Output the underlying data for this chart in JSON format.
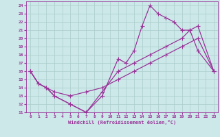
{
  "xlabel": "Windchill (Refroidissement éolien,°C)",
  "xlim": [
    -0.5,
    23.5
  ],
  "ylim": [
    11,
    24.5
  ],
  "xticks": [
    0,
    1,
    2,
    3,
    4,
    5,
    6,
    7,
    8,
    9,
    10,
    11,
    12,
    13,
    14,
    15,
    16,
    17,
    18,
    19,
    20,
    21,
    22,
    23
  ],
  "yticks": [
    11,
    12,
    13,
    14,
    15,
    16,
    17,
    18,
    19,
    20,
    21,
    22,
    23,
    24
  ],
  "bg_color": "#cce8e8",
  "line_color": "#993399",
  "grid_color": "#aacccc",
  "line1_x": [
    0,
    1,
    2,
    3,
    5,
    7,
    9,
    11,
    12,
    13,
    14,
    15,
    16,
    17,
    18,
    19,
    20,
    21,
    23
  ],
  "line1_y": [
    16,
    14.5,
    14,
    13,
    12,
    11,
    13,
    17.5,
    17,
    18.5,
    21.5,
    24,
    23,
    22.5,
    22,
    21,
    21,
    18.5,
    16
  ],
  "line2_x": [
    0,
    1,
    2,
    3,
    5,
    7,
    9,
    11,
    13,
    15,
    17,
    19,
    21,
    23
  ],
  "line2_y": [
    16,
    14.5,
    14,
    13.5,
    13,
    13.5,
    14,
    15,
    16,
    17,
    18,
    19,
    20,
    16
  ],
  "line3_x": [
    0,
    1,
    2,
    3,
    5,
    7,
    9,
    11,
    13,
    15,
    17,
    19,
    20,
    21,
    23
  ],
  "line3_y": [
    16,
    14.5,
    14,
    13,
    12,
    11,
    13.5,
    16,
    17,
    18,
    19,
    20,
    21,
    21.5,
    16
  ],
  "marker": "+",
  "markersize": 4,
  "linewidth": 0.9
}
